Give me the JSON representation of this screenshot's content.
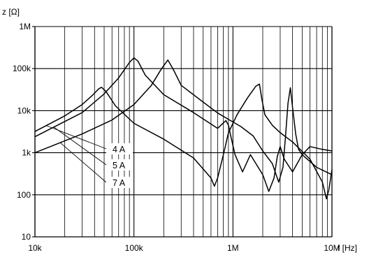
{
  "chart_data": {
    "type": "line",
    "title": "",
    "xlabel": "f [Hz]",
    "ylabel": "z [Ω]",
    "xscale": "log",
    "yscale": "log",
    "xlim": [
      10000,
      10000000
    ],
    "ylim": [
      10,
      1000000
    ],
    "grid": true,
    "x_ticks": [
      {
        "value": 10000,
        "label": "10k"
      },
      {
        "value": 100000,
        "label": "100k"
      },
      {
        "value": 1000000,
        "label": "1M"
      },
      {
        "value": 10000000,
        "label": "10M"
      }
    ],
    "y_ticks": [
      {
        "value": 10,
        "label": "10"
      },
      {
        "value": 100,
        "label": "100"
      },
      {
        "value": 1000,
        "label": "1k"
      },
      {
        "value": 10000,
        "label": "10k"
      },
      {
        "value": 100000,
        "label": "100k"
      },
      {
        "value": 1000000,
        "label": "1M"
      }
    ],
    "series": [
      {
        "name": "4 A",
        "x": [
          10000,
          20000,
          30000,
          38000,
          44000,
          47000,
          52000,
          65000,
          100000,
          200000,
          400000,
          600000,
          650000,
          700000,
          800000,
          900000,
          1100000,
          1400000,
          1700000,
          1850000,
          1950000,
          2100000,
          2500000,
          3000000,
          4000000,
          6000000,
          8000000,
          8800000,
          9300000,
          10000000
        ],
        "y": [
          3200,
          7500,
          14000,
          23000,
          33000,
          36000,
          29000,
          13000,
          5000,
          2100,
          750,
          250,
          160,
          250,
          900,
          3000,
          8000,
          20000,
          38000,
          43000,
          20000,
          8000,
          4500,
          3000,
          1800,
          700,
          200,
          80,
          130,
          400
        ]
      },
      {
        "name": "5 A",
        "x": [
          10000,
          30000,
          50000,
          70000,
          90000,
          100000,
          110000,
          130000,
          200000,
          400000,
          700000,
          850000,
          900000,
          950000,
          1050000,
          1250000,
          1500000,
          2000000,
          2300000,
          2600000,
          2800000,
          3000000,
          3300000,
          4000000,
          5000000,
          7000000,
          10000000
        ],
        "y": [
          2400,
          9000,
          25000,
          60000,
          140000,
          180000,
          150000,
          70000,
          24000,
          9000,
          3800,
          5800,
          4500,
          2500,
          900,
          350,
          900,
          300,
          120,
          250,
          800,
          1400,
          700,
          350,
          900,
          450,
          300
        ]
      },
      {
        "name": "7 A",
        "x": [
          10000,
          30000,
          60000,
          100000,
          150000,
          190000,
          220000,
          250000,
          300000,
          500000,
          700000,
          900000,
          1200000,
          1600000,
          2000000,
          2500000,
          2900000,
          3200000,
          3400000,
          3600000,
          3800000,
          4000000,
          4300000,
          4600000,
          5000000,
          6000000,
          8000000,
          10000000
        ],
        "y": [
          1000,
          2800,
          6000,
          14000,
          40000,
          100000,
          160000,
          95000,
          40000,
          16000,
          8800,
          6200,
          4200,
          2500,
          1100,
          550,
          200,
          450,
          2500,
          15000,
          35000,
          12000,
          2800,
          1200,
          900,
          1400,
          1200,
          1100
        ]
      }
    ],
    "annotations": [
      "4 A",
      "5 A",
      "7 A"
    ]
  }
}
